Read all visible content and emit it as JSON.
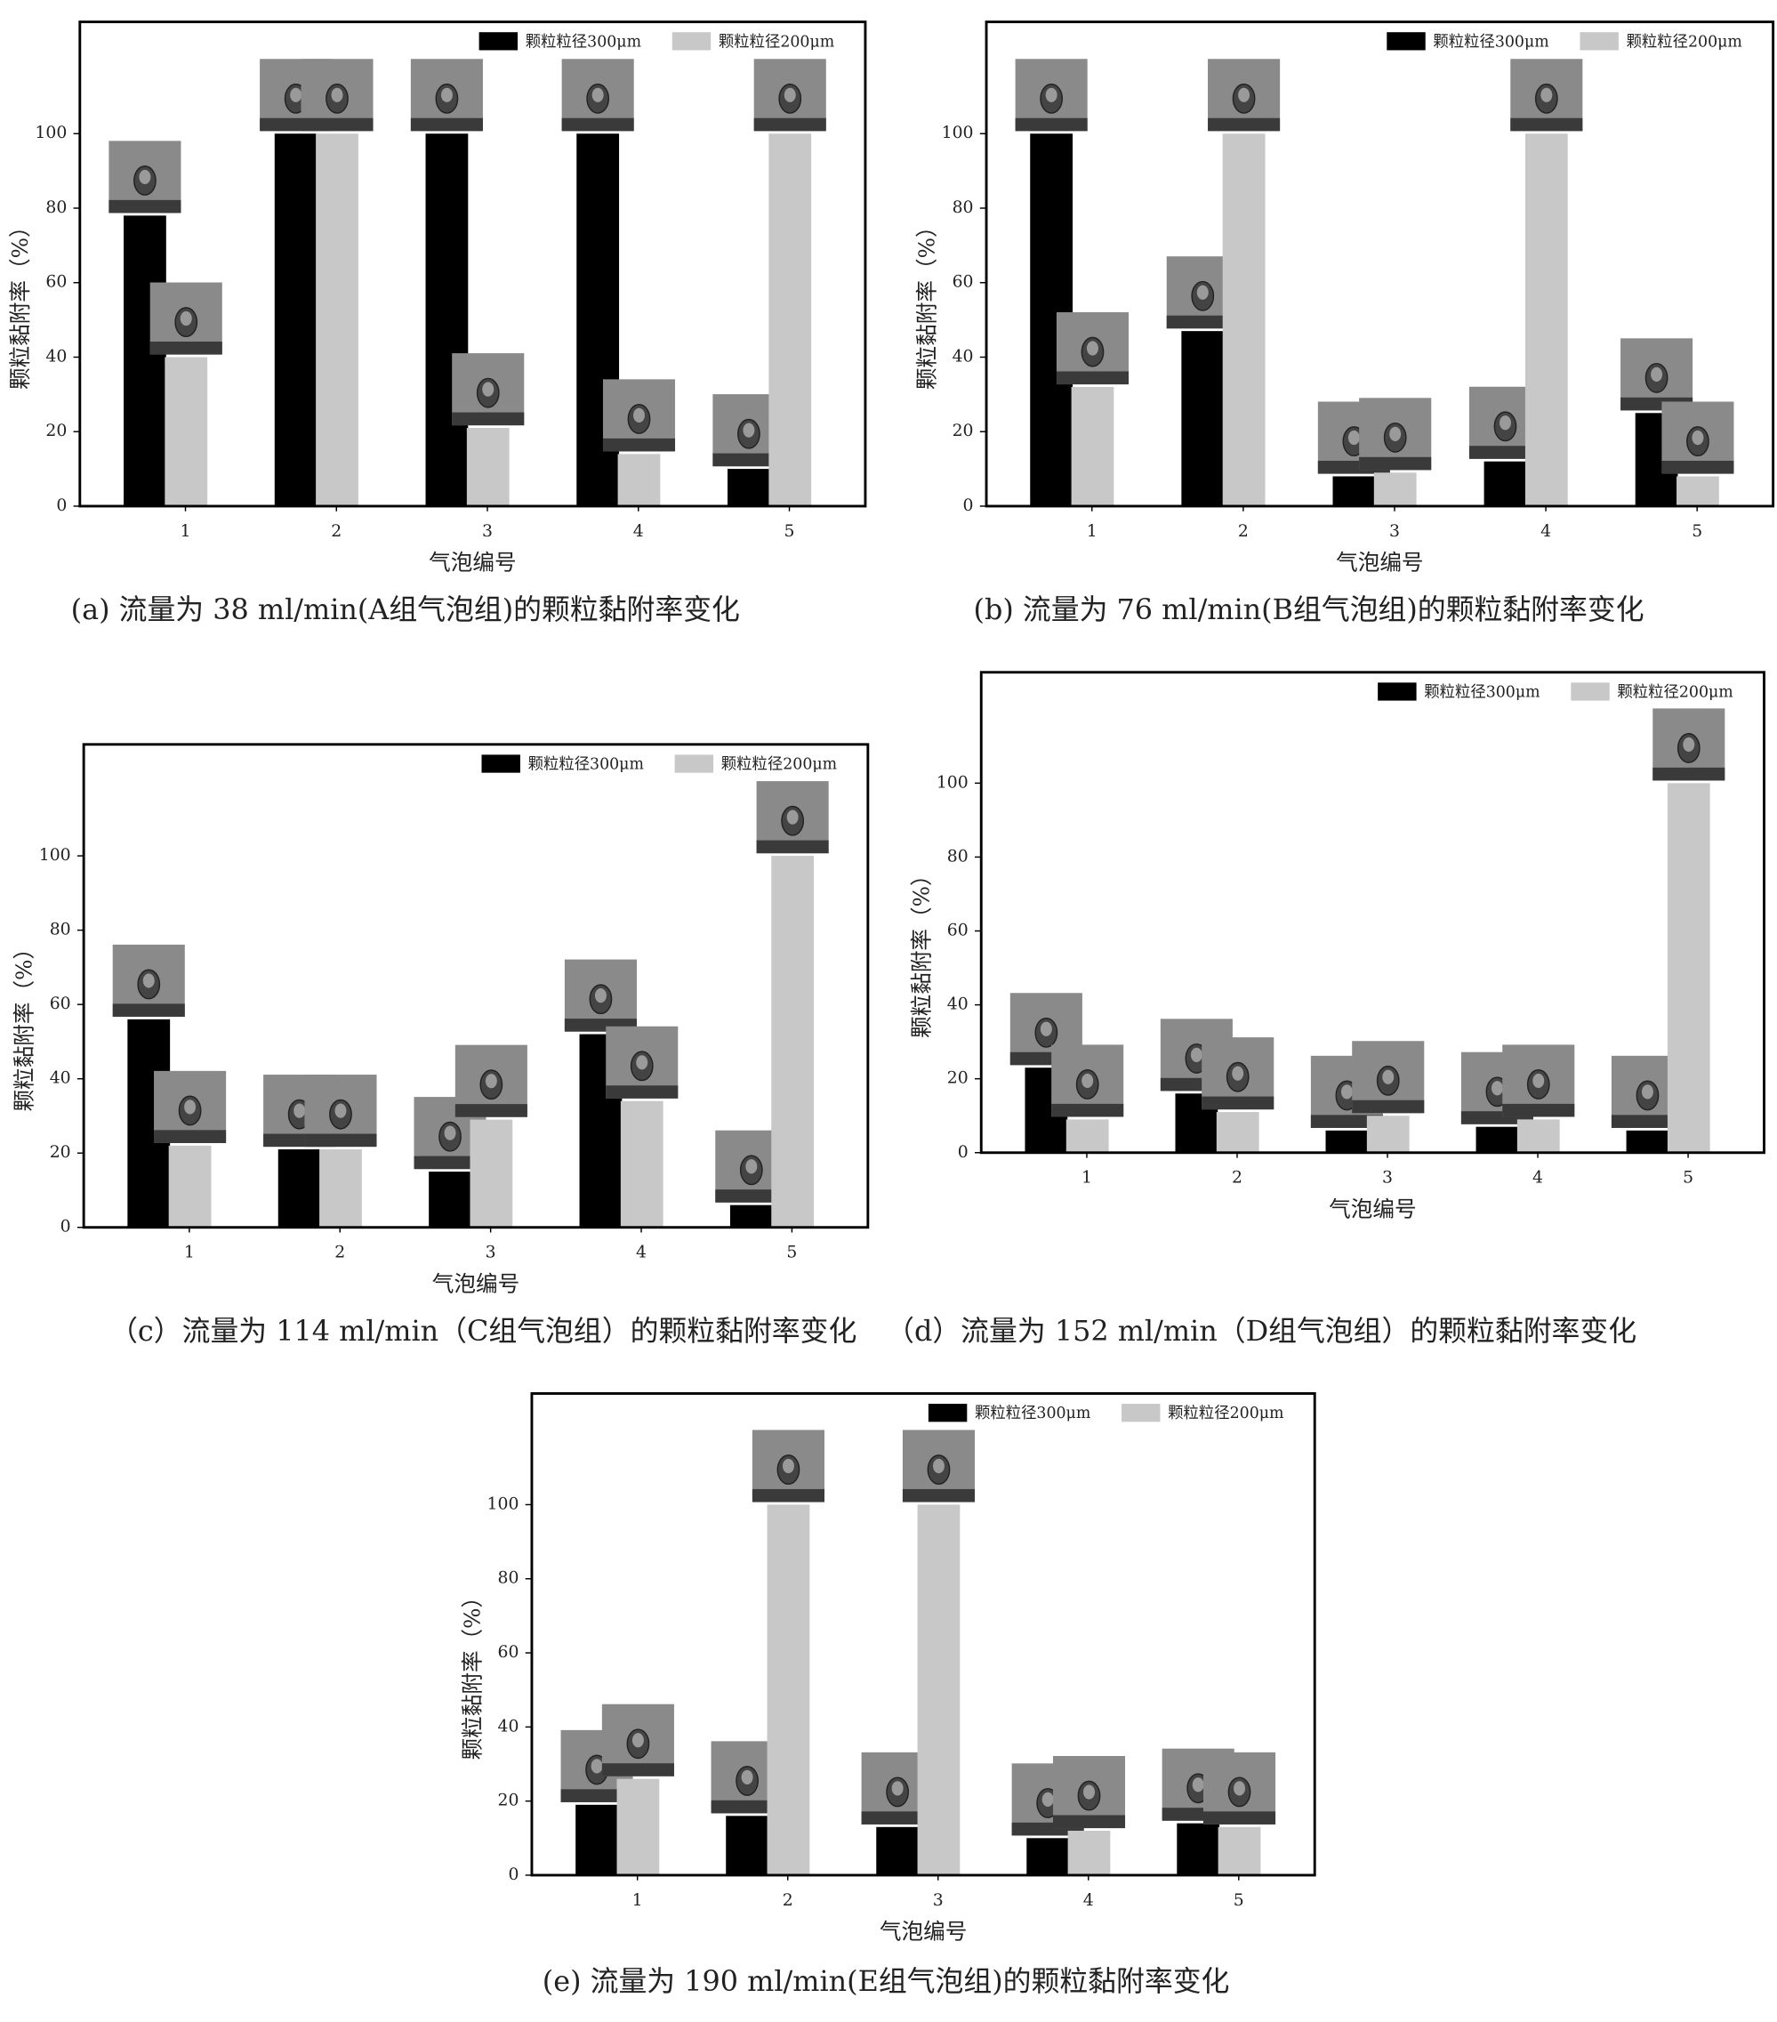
{
  "chart_data": [
    {
      "type": "bar",
      "caption": "(a) 流量为 38 ml/min(A组气泡组)的颗粒黏附率变化",
      "xlabel": "气泡编号",
      "ylabel": "颗粒黏附率（%）",
      "categories": [
        "1",
        "2",
        "3",
        "4",
        "5"
      ],
      "series": [
        {
          "name": "颗粒粒径300μm",
          "color": "#000000",
          "values": [
            78,
            100,
            100,
            100,
            10
          ]
        },
        {
          "name": "颗粒粒径200μm",
          "color": "#c8c8c8",
          "values": [
            40,
            100,
            21,
            14,
            100
          ]
        }
      ],
      "ylim": [
        0,
        130
      ],
      "yticks": [
        0,
        20,
        40,
        60,
        80,
        100
      ],
      "legend": "upper right"
    },
    {
      "type": "bar",
      "caption": "(b) 流量为 76 ml/min(B组气泡组)的颗粒黏附率变化",
      "xlabel": "气泡编号",
      "ylabel": "颗粒黏附率（%）",
      "categories": [
        "1",
        "2",
        "3",
        "4",
        "5"
      ],
      "series": [
        {
          "name": "颗粒粒径300μm",
          "color": "#000000",
          "values": [
            100,
            47,
            8,
            12,
            25
          ]
        },
        {
          "name": "颗粒粒径200μm",
          "color": "#c8c8c8",
          "values": [
            32,
            100,
            9,
            100,
            8
          ]
        }
      ],
      "ylim": [
        0,
        130
      ],
      "yticks": [
        0,
        20,
        40,
        60,
        80,
        100
      ],
      "legend": "upper right"
    },
    {
      "type": "bar",
      "caption": "（c）流量为 114 ml/min（C组气泡组）的颗粒黏附率变化",
      "xlabel": "气泡编号",
      "ylabel": "颗粒黏附率（%）",
      "categories": [
        "1",
        "2",
        "3",
        "4",
        "5"
      ],
      "series": [
        {
          "name": "颗粒粒径300μm",
          "color": "#000000",
          "values": [
            56,
            21,
            15,
            52,
            6
          ]
        },
        {
          "name": "颗粒粒径200μm",
          "color": "#c8c8c8",
          "values": [
            22,
            21,
            29,
            34,
            100
          ]
        }
      ],
      "ylim": [
        0,
        130
      ],
      "yticks": [
        0,
        20,
        40,
        60,
        80,
        100
      ],
      "legend": "upper right"
    },
    {
      "type": "bar",
      "caption": "（d）流量为 152 ml/min（D组气泡组）的颗粒黏附率变化",
      "xlabel": "气泡编号",
      "ylabel": "颗粒黏附率（%）",
      "categories": [
        "1",
        "2",
        "3",
        "4",
        "5"
      ],
      "series": [
        {
          "name": "颗粒粒径300μm",
          "color": "#000000",
          "values": [
            23,
            16,
            6,
            7,
            6
          ]
        },
        {
          "name": "颗粒粒径200μm",
          "color": "#c8c8c8",
          "values": [
            9,
            11,
            10,
            9,
            100
          ]
        }
      ],
      "ylim": [
        0,
        130
      ],
      "yticks": [
        0,
        20,
        40,
        60,
        80,
        100
      ],
      "legend": "upper right"
    },
    {
      "type": "bar",
      "caption": "(e) 流量为 190 ml/min(E组气泡组)的颗粒黏附率变化",
      "xlabel": "气泡编号",
      "ylabel": "颗粒黏附率（%）",
      "categories": [
        "1",
        "2",
        "3",
        "4",
        "5"
      ],
      "series": [
        {
          "name": "颗粒粒径300μm",
          "color": "#000000",
          "values": [
            19,
            16,
            13,
            10,
            14
          ]
        },
        {
          "name": "颗粒粒径200μm",
          "color": "#c8c8c8",
          "values": [
            26,
            100,
            100,
            12,
            13
          ]
        }
      ],
      "ylim": [
        0,
        130
      ],
      "yticks": [
        0,
        20,
        40,
        60,
        80,
        100
      ],
      "legend": "upper right"
    }
  ]
}
